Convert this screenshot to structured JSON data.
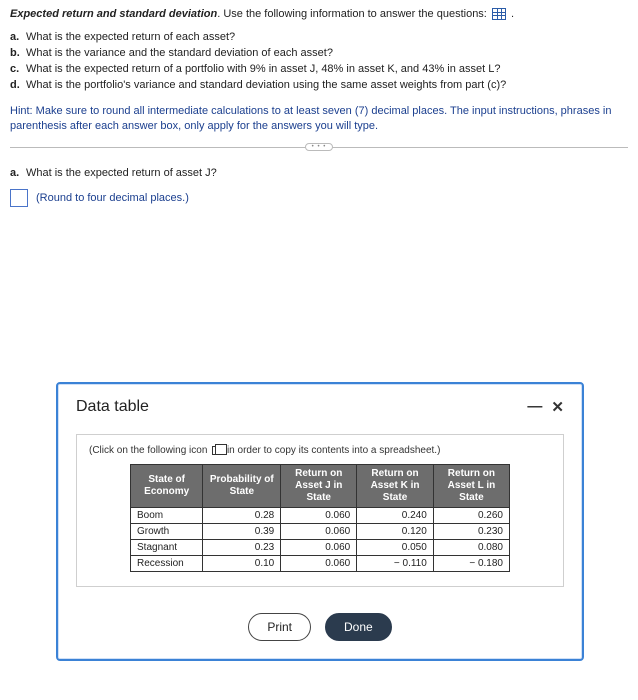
{
  "intro": {
    "title": "Expected return and standard deviation",
    "subtitle": ". Use the following information to answer the questions: ",
    "trailing_period": " ."
  },
  "questions": [
    {
      "marker": "a.",
      "text": "What is the expected return of each asset?"
    },
    {
      "marker": "b.",
      "text": "What is the variance and the standard deviation of each asset?"
    },
    {
      "marker": "c.",
      "text": "What is the expected return of a portfolio with 9% in asset J, 48% in asset K, and 43% in asset L?"
    },
    {
      "marker": "d.",
      "text": "What is the portfolio's variance and standard deviation using the same asset weights from part (c)?"
    }
  ],
  "hint": "Hint: Make sure to round all intermediate calculations to at least seven (7) decimal places. The input instructions, phrases in parenthesis after each answer box, only apply for the answers you will type.",
  "sep_dots": "• • •",
  "prompt": {
    "marker": "a.",
    "text": "What is the expected return of asset J?"
  },
  "answer": {
    "round_note": "(Round to four decimal places.)"
  },
  "modal": {
    "title": "Data table",
    "minimize": "—",
    "close": "✕",
    "copy_note_pre": "(Click on the following icon ",
    "copy_note_post": " in order to copy its contents into a spreadsheet.)",
    "table": {
      "headers": [
        "State of Economy",
        "Probability of State",
        "Return on Asset J in State",
        "Return on Asset K in State",
        "Return on Asset L in State"
      ],
      "rows": [
        {
          "label": "Boom",
          "prob": "0.28",
          "j": "0.060",
          "k": "0.240",
          "l": "0.260"
        },
        {
          "label": "Growth",
          "prob": "0.39",
          "j": "0.060",
          "k": "0.120",
          "l": "0.230"
        },
        {
          "label": "Stagnant",
          "prob": "0.23",
          "j": "0.060",
          "k": "0.050",
          "l": "0.080"
        },
        {
          "label": "Recession",
          "prob": "0.10",
          "j": "0.060",
          "k": "− 0.110",
          "l": "− 0.180"
        }
      ]
    },
    "buttons": {
      "print": "Print",
      "done": "Done"
    }
  },
  "colors": {
    "hint": "#1b3f8f",
    "modal_border": "#3b82d6",
    "done_bg": "#2b3b4e",
    "th_bg": "#6d6d6d"
  }
}
